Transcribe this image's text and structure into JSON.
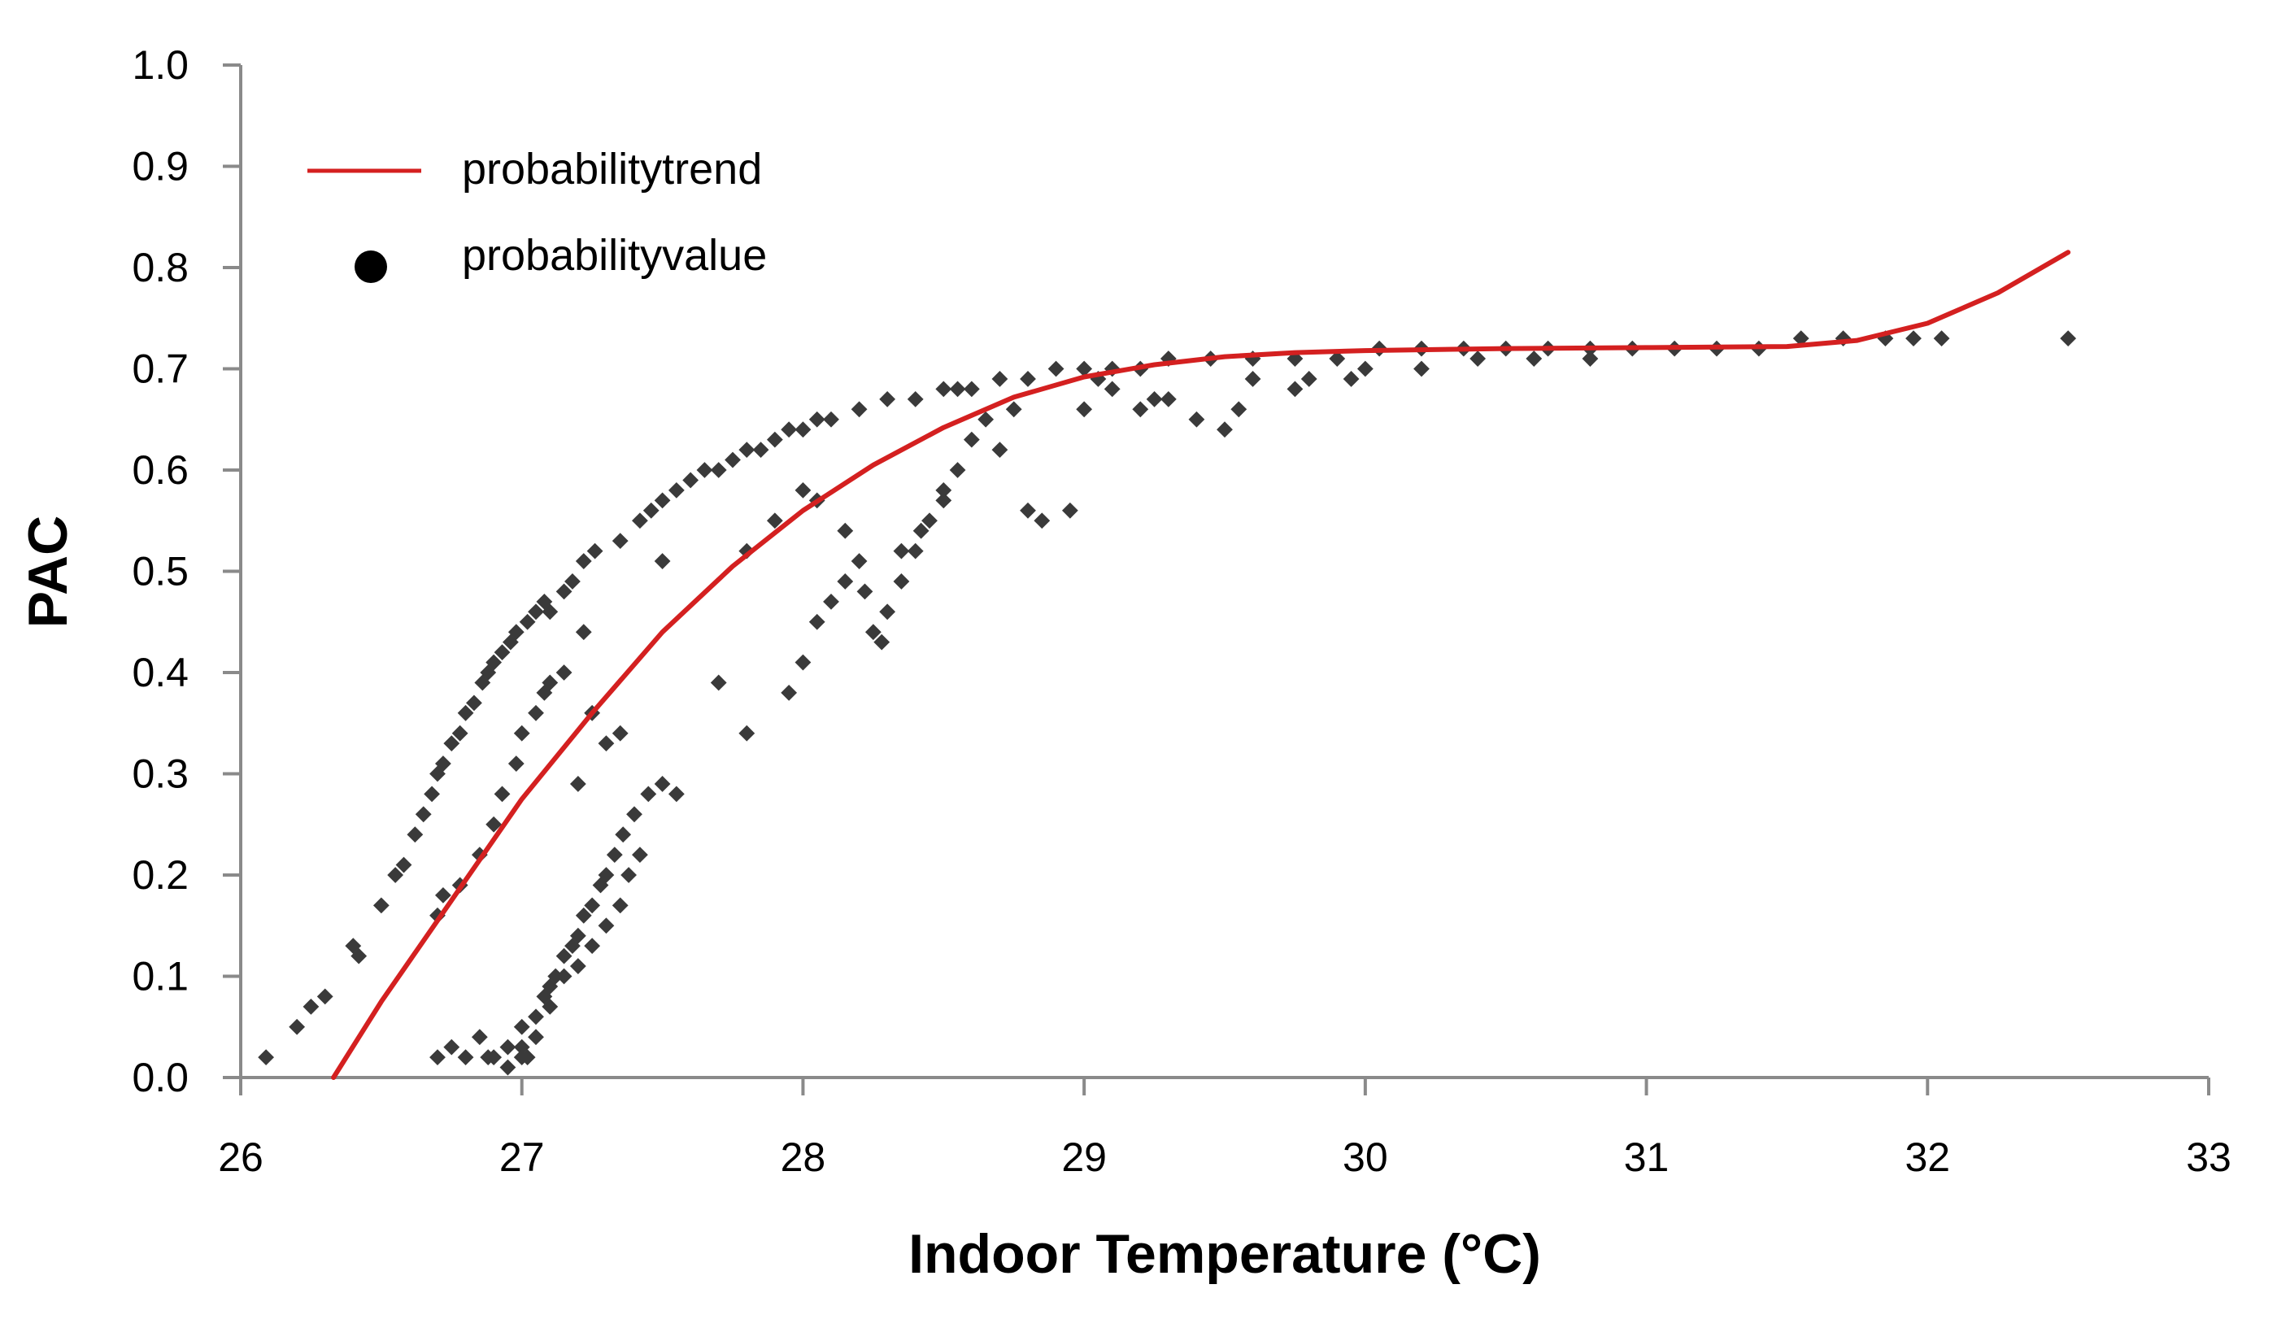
{
  "chart_data": {
    "type": "scatter",
    "title": "",
    "xlabel": "Indoor Temperature (°C)",
    "ylabel": "PAC",
    "xlim": [
      26,
      33
    ],
    "ylim": [
      0.0,
      1.0
    ],
    "xticks": [
      "26",
      "27",
      "28",
      "29",
      "30",
      "31",
      "32",
      "33"
    ],
    "yticks": [
      "0.0",
      "0.1",
      "0.2",
      "0.3",
      "0.4",
      "0.5",
      "0.6",
      "0.7",
      "0.8",
      "0.9",
      "1.0"
    ],
    "grid": false,
    "legend": {
      "position": "top-left",
      "entries": [
        {
          "label": "probabilitytrend",
          "marker": "line",
          "color": "#d42020"
        },
        {
          "label": "probabilityvalue",
          "marker": "dot",
          "color": "#000000"
        }
      ]
    },
    "series": [
      {
        "name": "probabilityvalue",
        "kind": "scatter",
        "color": "#3a3a3a",
        "points": [
          [
            26.09,
            0.02
          ],
          [
            26.2,
            0.05
          ],
          [
            26.25,
            0.07
          ],
          [
            26.3,
            0.08
          ],
          [
            26.4,
            0.13
          ],
          [
            26.42,
            0.12
          ],
          [
            26.5,
            0.17
          ],
          [
            26.55,
            0.2
          ],
          [
            26.58,
            0.21
          ],
          [
            26.62,
            0.24
          ],
          [
            26.65,
            0.26
          ],
          [
            26.68,
            0.28
          ],
          [
            26.7,
            0.3
          ],
          [
            26.72,
            0.31
          ],
          [
            26.75,
            0.33
          ],
          [
            26.78,
            0.34
          ],
          [
            26.8,
            0.36
          ],
          [
            26.83,
            0.37
          ],
          [
            26.86,
            0.39
          ],
          [
            26.88,
            0.4
          ],
          [
            26.9,
            0.41
          ],
          [
            26.93,
            0.42
          ],
          [
            26.96,
            0.43
          ],
          [
            26.98,
            0.44
          ],
          [
            27.02,
            0.45
          ],
          [
            27.05,
            0.46
          ],
          [
            27.08,
            0.47
          ],
          [
            27.1,
            0.46
          ],
          [
            27.15,
            0.48
          ],
          [
            27.18,
            0.49
          ],
          [
            27.22,
            0.51
          ],
          [
            27.26,
            0.52
          ],
          [
            27.35,
            0.53
          ],
          [
            27.42,
            0.55
          ],
          [
            27.46,
            0.56
          ],
          [
            27.5,
            0.57
          ],
          [
            27.55,
            0.58
          ],
          [
            27.6,
            0.59
          ],
          [
            27.65,
            0.6
          ],
          [
            27.7,
            0.6
          ],
          [
            27.75,
            0.61
          ],
          [
            27.8,
            0.62
          ],
          [
            27.85,
            0.62
          ],
          [
            27.9,
            0.63
          ],
          [
            27.95,
            0.64
          ],
          [
            28.0,
            0.64
          ],
          [
            28.05,
            0.65
          ],
          [
            28.1,
            0.65
          ],
          [
            28.2,
            0.66
          ],
          [
            28.3,
            0.67
          ],
          [
            28.4,
            0.67
          ],
          [
            28.5,
            0.68
          ],
          [
            28.55,
            0.68
          ],
          [
            28.6,
            0.68
          ],
          [
            28.7,
            0.69
          ],
          [
            28.8,
            0.69
          ],
          [
            28.9,
            0.7
          ],
          [
            29.0,
            0.7
          ],
          [
            29.1,
            0.7
          ],
          [
            29.2,
            0.7
          ],
          [
            29.3,
            0.71
          ],
          [
            29.45,
            0.71
          ],
          [
            29.6,
            0.71
          ],
          [
            29.75,
            0.71
          ],
          [
            29.9,
            0.71
          ],
          [
            30.05,
            0.72
          ],
          [
            30.2,
            0.72
          ],
          [
            30.35,
            0.72
          ],
          [
            30.5,
            0.72
          ],
          [
            30.65,
            0.72
          ],
          [
            30.8,
            0.72
          ],
          [
            30.95,
            0.72
          ],
          [
            31.1,
            0.72
          ],
          [
            31.25,
            0.72
          ],
          [
            31.4,
            0.72
          ],
          [
            31.55,
            0.73
          ],
          [
            31.7,
            0.73
          ],
          [
            31.85,
            0.73
          ],
          [
            31.95,
            0.73
          ],
          [
            32.05,
            0.73
          ],
          [
            32.5,
            0.73
          ],
          [
            26.7,
            0.02
          ],
          [
            26.75,
            0.03
          ],
          [
            26.8,
            0.02
          ],
          [
            26.9,
            0.02
          ],
          [
            26.95,
            0.03
          ],
          [
            27.0,
            0.03
          ],
          [
            27.0,
            0.05
          ],
          [
            27.05,
            0.06
          ],
          [
            27.08,
            0.08
          ],
          [
            27.1,
            0.09
          ],
          [
            27.12,
            0.1
          ],
          [
            27.15,
            0.12
          ],
          [
            27.18,
            0.13
          ],
          [
            27.2,
            0.14
          ],
          [
            27.22,
            0.16
          ],
          [
            27.25,
            0.17
          ],
          [
            27.28,
            0.19
          ],
          [
            27.3,
            0.2
          ],
          [
            27.33,
            0.22
          ],
          [
            27.36,
            0.24
          ],
          [
            27.4,
            0.26
          ],
          [
            27.45,
            0.28
          ],
          [
            27.5,
            0.29
          ],
          [
            27.55,
            0.28
          ],
          [
            26.7,
            0.16
          ],
          [
            26.72,
            0.18
          ],
          [
            26.78,
            0.19
          ],
          [
            26.85,
            0.22
          ],
          [
            26.9,
            0.25
          ],
          [
            26.93,
            0.28
          ],
          [
            26.98,
            0.31
          ],
          [
            27.0,
            0.34
          ],
          [
            27.05,
            0.36
          ],
          [
            27.08,
            0.38
          ],
          [
            27.1,
            0.39
          ],
          [
            27.15,
            0.4
          ],
          [
            27.2,
            0.29
          ],
          [
            27.25,
            0.36
          ],
          [
            27.3,
            0.33
          ],
          [
            27.35,
            0.34
          ],
          [
            27.22,
            0.44
          ],
          [
            27.5,
            0.51
          ],
          [
            27.7,
            0.39
          ],
          [
            27.8,
            0.34
          ],
          [
            27.95,
            0.38
          ],
          [
            28.0,
            0.41
          ],
          [
            28.05,
            0.45
          ],
          [
            28.1,
            0.47
          ],
          [
            28.15,
            0.49
          ],
          [
            28.2,
            0.51
          ],
          [
            28.25,
            0.44
          ],
          [
            28.3,
            0.46
          ],
          [
            28.35,
            0.49
          ],
          [
            28.4,
            0.52
          ],
          [
            28.45,
            0.55
          ],
          [
            28.5,
            0.57
          ],
          [
            28.55,
            0.6
          ],
          [
            28.6,
            0.63
          ],
          [
            28.65,
            0.65
          ],
          [
            28.7,
            0.62
          ],
          [
            28.8,
            0.56
          ],
          [
            28.85,
            0.55
          ],
          [
            28.95,
            0.56
          ],
          [
            29.0,
            0.66
          ],
          [
            29.1,
            0.68
          ],
          [
            29.2,
            0.66
          ],
          [
            29.3,
            0.67
          ],
          [
            29.4,
            0.65
          ],
          [
            29.5,
            0.64
          ],
          [
            29.6,
            0.69
          ],
          [
            29.8,
            0.69
          ],
          [
            30.0,
            0.7
          ],
          [
            30.2,
            0.7
          ],
          [
            30.4,
            0.71
          ],
          [
            30.6,
            0.71
          ],
          [
            30.8,
            0.71
          ],
          [
            27.8,
            0.52
          ],
          [
            27.9,
            0.55
          ],
          [
            28.0,
            0.58
          ],
          [
            28.05,
            0.57
          ],
          [
            28.15,
            0.54
          ],
          [
            28.22,
            0.48
          ],
          [
            28.28,
            0.43
          ],
          [
            28.35,
            0.52
          ],
          [
            28.42,
            0.54
          ],
          [
            28.5,
            0.58
          ],
          [
            28.75,
            0.66
          ],
          [
            29.05,
            0.69
          ],
          [
            29.25,
            0.67
          ],
          [
            29.55,
            0.66
          ],
          [
            29.75,
            0.68
          ],
          [
            29.95,
            0.69
          ],
          [
            27.0,
            0.02
          ],
          [
            27.05,
            0.04
          ],
          [
            27.1,
            0.07
          ],
          [
            27.15,
            0.1
          ],
          [
            27.2,
            0.11
          ],
          [
            27.25,
            0.13
          ],
          [
            27.3,
            0.15
          ],
          [
            27.35,
            0.17
          ],
          [
            27.38,
            0.2
          ],
          [
            27.42,
            0.22
          ],
          [
            26.85,
            0.04
          ],
          [
            26.88,
            0.02
          ],
          [
            26.95,
            0.01
          ],
          [
            27.02,
            0.02
          ]
        ]
      },
      {
        "name": "probabilitytrend",
        "kind": "line",
        "color": "#d42020",
        "points": [
          [
            26.33,
            0.0
          ],
          [
            26.5,
            0.075
          ],
          [
            26.75,
            0.175
          ],
          [
            27.0,
            0.275
          ],
          [
            27.25,
            0.36
          ],
          [
            27.5,
            0.44
          ],
          [
            27.75,
            0.505
          ],
          [
            28.0,
            0.56
          ],
          [
            28.25,
            0.605
          ],
          [
            28.5,
            0.642
          ],
          [
            28.75,
            0.672
          ],
          [
            29.0,
            0.692
          ],
          [
            29.25,
            0.704
          ],
          [
            29.5,
            0.712
          ],
          [
            29.75,
            0.716
          ],
          [
            30.0,
            0.718
          ],
          [
            30.5,
            0.72
          ],
          [
            31.0,
            0.721
          ],
          [
            31.5,
            0.722
          ],
          [
            31.75,
            0.728
          ],
          [
            32.0,
            0.745
          ],
          [
            32.25,
            0.775
          ],
          [
            32.5,
            0.815
          ]
        ]
      }
    ]
  }
}
